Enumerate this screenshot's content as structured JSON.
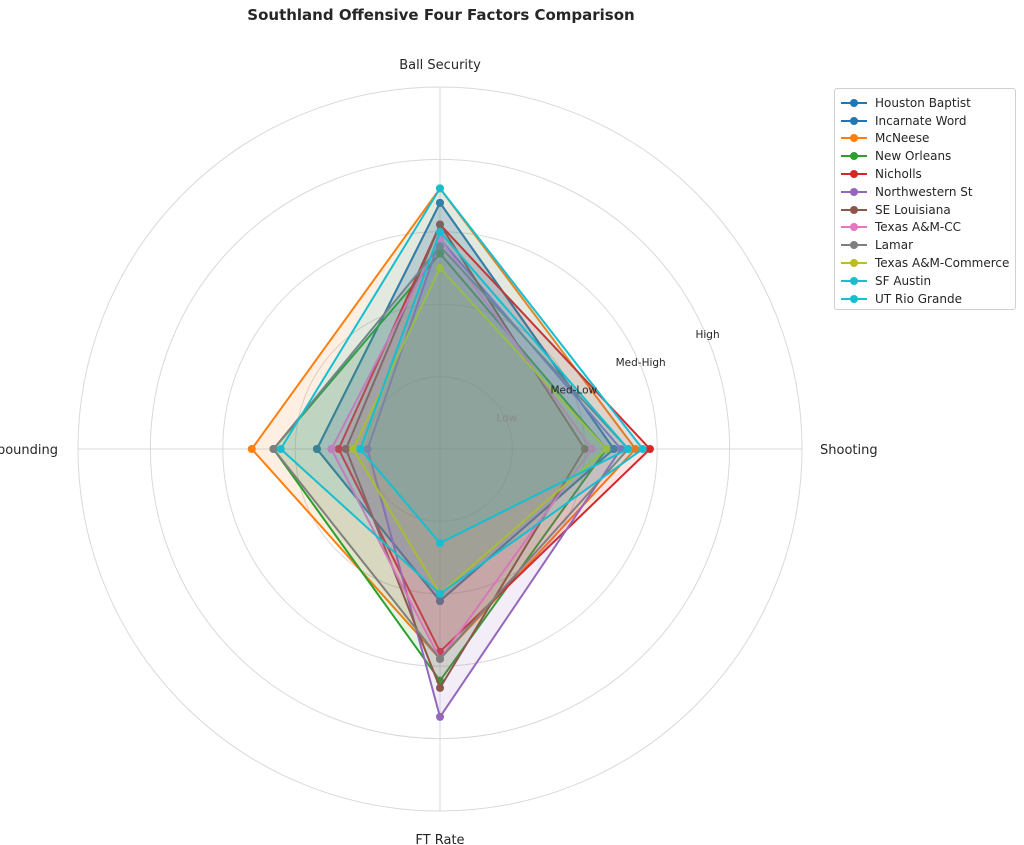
{
  "chart_data": {
    "type": "radar",
    "title": "Southland Offensive Four Factors Comparison",
    "axes": [
      "Shooting",
      "Ball Security",
      "Off Rebounding",
      "FT Rate"
    ],
    "rlim": [
      0,
      5
    ],
    "rings": [
      1,
      2,
      3,
      4,
      5
    ],
    "ring_labels": [
      {
        "r": 1,
        "label": "Low"
      },
      {
        "r": 2,
        "label": "Med-Low"
      },
      {
        "r": 3,
        "label": "Med-High"
      },
      {
        "r": 4,
        "label": "High"
      }
    ],
    "grid": true,
    "legend_position": "top-right",
    "series": [
      {
        "name": "Houston Baptist",
        "color": "#1f77b4",
        "values": [
          2.4,
          3.4,
          1.7,
          2.1
        ]
      },
      {
        "name": "Incarnate Word",
        "color": "#1f77b4",
        "values": [
          2.4,
          3.4,
          1.7,
          2.1
        ]
      },
      {
        "name": "McNeese",
        "color": "#ff7f0e",
        "values": [
          2.7,
          3.6,
          2.6,
          2.9
        ]
      },
      {
        "name": "New Orleans",
        "color": "#2ca02c",
        "values": [
          2.3,
          2.7,
          2.3,
          3.2
        ]
      },
      {
        "name": "Nicholls",
        "color": "#d62728",
        "values": [
          2.9,
          3.1,
          1.4,
          2.8
        ]
      },
      {
        "name": "Northwestern St",
        "color": "#9467bd",
        "values": [
          2.5,
          2.9,
          1.0,
          3.7
        ]
      },
      {
        "name": "SE Louisiana",
        "color": "#8c564b",
        "values": [
          2.0,
          3.1,
          1.3,
          3.3
        ]
      },
      {
        "name": "Texas A&M-CC",
        "color": "#e377c2",
        "values": [
          2.1,
          2.9,
          1.5,
          2.9
        ]
      },
      {
        "name": "Lamar",
        "color": "#7f7f7f",
        "values": [
          2.6,
          2.8,
          2.3,
          2.9
        ]
      },
      {
        "name": "Texas A&M-Commerce",
        "color": "#bcbd22",
        "values": [
          2.3,
          2.5,
          1.2,
          2.0
        ]
      },
      {
        "name": "SF Austin",
        "color": "#17becf",
        "values": [
          2.8,
          3.6,
          2.2,
          2.0
        ]
      },
      {
        "name": "UT Rio Grande",
        "color": "#17becf",
        "values": [
          2.6,
          3.0,
          1.1,
          1.3
        ]
      }
    ]
  }
}
